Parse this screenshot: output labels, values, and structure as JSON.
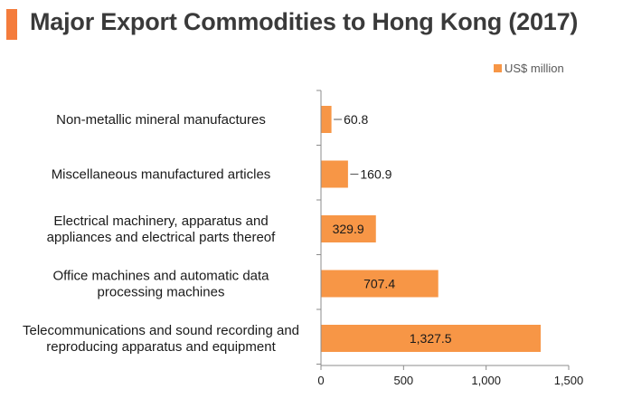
{
  "title": "Major Export Commodities to Hong Kong (2017)",
  "colors": {
    "accent": "#f47c3c",
    "bar": "#f79646",
    "axis": "#8c8c8c",
    "text": "#1a1a1a"
  },
  "chart_data": {
    "type": "bar",
    "orientation": "horizontal",
    "title": "Major Export Commodities to Hong Kong (2017)",
    "categories": [
      [
        "Non-metallic mineral manufactures"
      ],
      [
        "Miscellaneous manufactured articles"
      ],
      [
        "Electrical machinery, apparatus and",
        "appliances and electrical parts thereof"
      ],
      [
        "Office machines and automatic data",
        "processing machines"
      ],
      [
        "Telecommunications and sound recording and",
        "reproducing apparatus and equipment"
      ]
    ],
    "series": [
      {
        "name": "US$ million",
        "values": [
          60.8,
          160.9,
          329.9,
          707.4,
          1327.5
        ]
      }
    ],
    "data_labels": [
      "60.8",
      "160.9",
      "329.9",
      "707.4",
      "1,327.5"
    ],
    "xlim": [
      0,
      1500
    ],
    "xticks": [
      0,
      500,
      1000,
      1500
    ],
    "xtick_labels": [
      "0",
      "500",
      "1,000",
      "1,500"
    ],
    "legend": {
      "position": "top-right"
    },
    "grid": false
  }
}
